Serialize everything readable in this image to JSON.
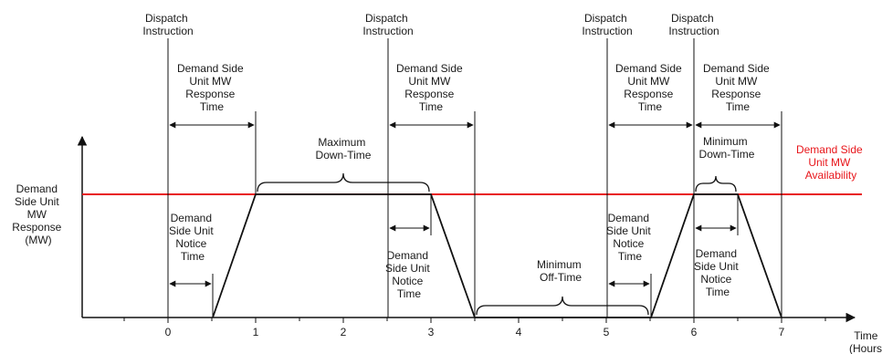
{
  "y_axis_label": [
    "Demand",
    "Side Unit",
    "MW",
    "Response",
    "(MW)"
  ],
  "x_axis_label": [
    "Time",
    "(Hours)"
  ],
  "x_ticks": [
    "0",
    "1",
    "2",
    "3",
    "4",
    "5",
    "6",
    "7"
  ],
  "availability_label": [
    "Demand Side",
    "Unit MW",
    "Availability"
  ],
  "dispatch_label": [
    "Dispatch",
    "Instruction"
  ],
  "response_time_label": [
    "Demand Side",
    "Unit MW",
    "Response",
    "Time"
  ],
  "notice_time_label": [
    "Demand",
    "Side Unit",
    "Notice",
    "Time"
  ],
  "max_down_time_label": [
    "Maximum",
    "Down-Time"
  ],
  "min_down_time_label": [
    "Minimum",
    "Down-Time"
  ],
  "min_off_time_label": [
    "Minimum",
    "Off-Time"
  ],
  "colors": {
    "availability": "#e8161b",
    "lines": "#111111"
  }
}
